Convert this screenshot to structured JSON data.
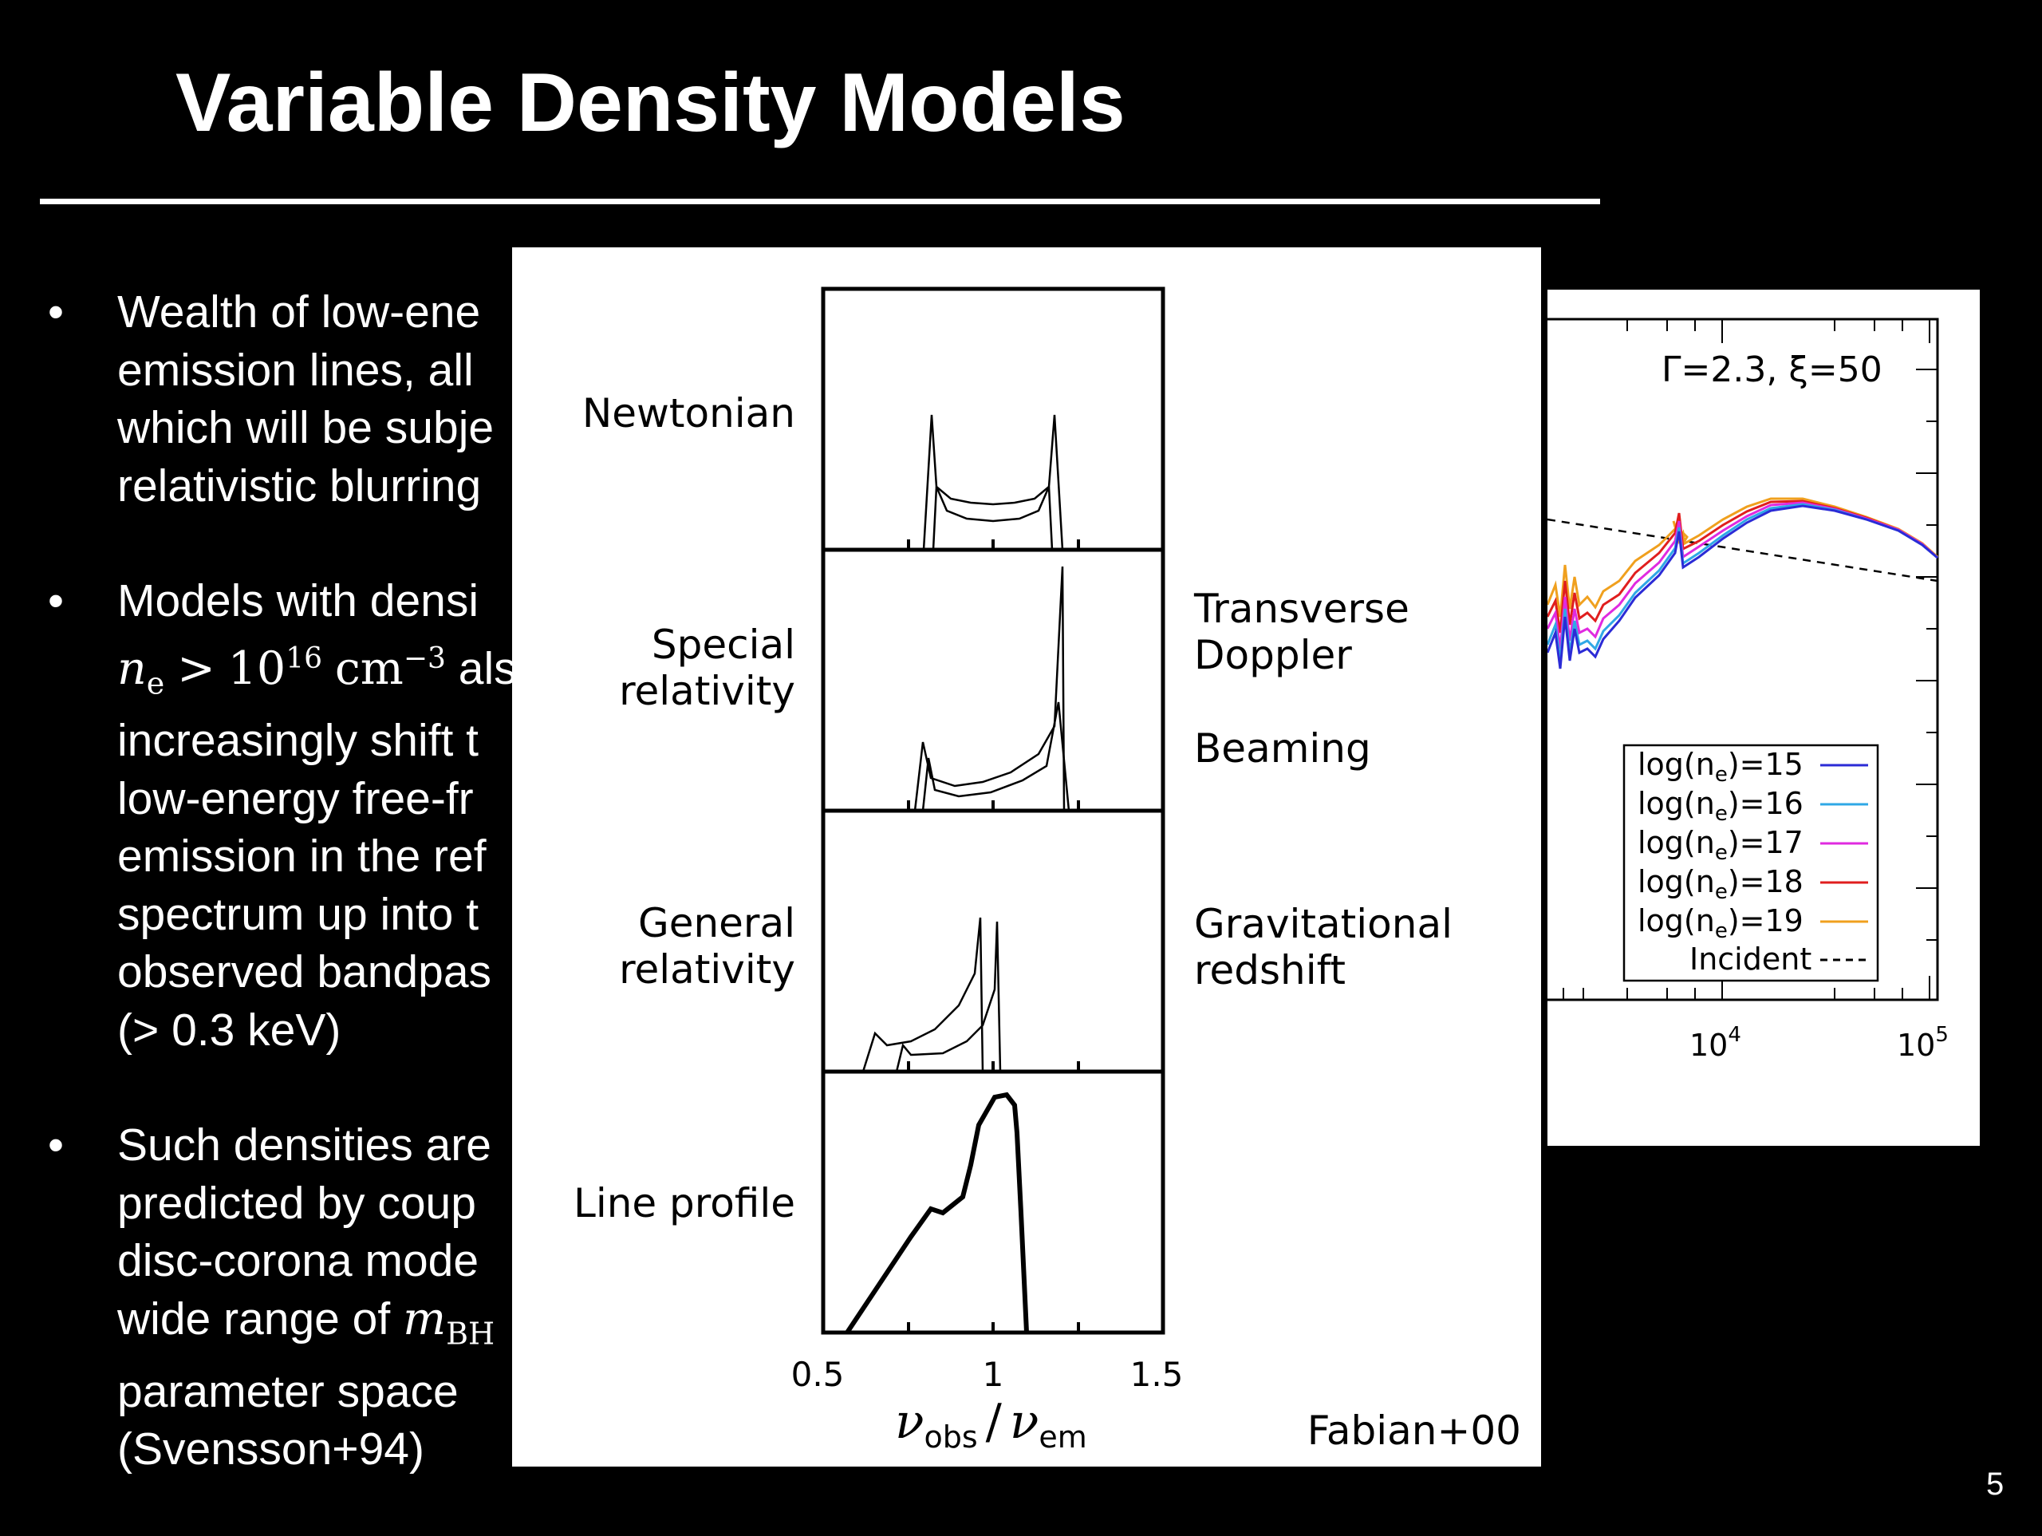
{
  "slide": {
    "title": "Variable Density Models",
    "page_number": "5"
  },
  "bullets": [
    {
      "lines": [
        "Wealth of low-ene",
        "emission lines, all",
        "which will be subje",
        "relativistic blurring"
      ]
    },
    {
      "lines": [
        "__MATH__",
        "increasingly shift t",
        "low-energy free-fr",
        "emission in the ref",
        "spectrum up into t",
        "observed bandpas",
        "(> 0.3 keV)"
      ],
      "math_line": {
        "n": "n",
        "sub": "e",
        "gt": ">",
        "base": "10",
        "exp": "16",
        "unit": "cm",
        "unit_exp": "−3",
        "after": "als"
      },
      "first_line": "Models with densi"
    },
    {
      "lines": [
        "Such densities are",
        "predicted by coup",
        "disc-corona mode",
        "__MATH2__",
        "parameter space",
        "(Svensson+94)"
      ],
      "math_line2": {
        "before": "wide range of ",
        "m": "m",
        "sub": "BH"
      }
    }
  ],
  "left_figure": {
    "panel_labels": [
      "Newtonian",
      "Special",
      "relativity",
      "General",
      "relativity",
      "Line profile"
    ],
    "effect_labels": [
      "Transverse",
      "Doppler",
      "Beaming",
      "Gravitational",
      "redshift"
    ],
    "x_ticks": [
      "0.5",
      "1",
      "1.5"
    ],
    "xlabel_num": "ν",
    "xlabel_num_sub": "obs",
    "xlabel_den": "ν",
    "xlabel_den_sub": "em",
    "xlabel_slash": "/",
    "credit": "Fabian+00"
  },
  "right_figure": {
    "annotation": "Γ=2.3, ξ=50",
    "x_ticks": [
      {
        "base": "10",
        "exp": "4"
      },
      {
        "base": "10",
        "exp": "5"
      }
    ],
    "legend": [
      {
        "label": "log(n",
        "sub": "e",
        "suffix": ")=15",
        "color": "#2b2bd6",
        "dash": false
      },
      {
        "label": "log(n",
        "sub": "e",
        "suffix": ")=16",
        "color": "#2fa8e6",
        "dash": false
      },
      {
        "label": "log(n",
        "sub": "e",
        "suffix": ")=17",
        "color": "#e02ae0",
        "dash": false
      },
      {
        "label": "log(n",
        "sub": "e",
        "suffix": ")=18",
        "color": "#e01e1e",
        "dash": false
      },
      {
        "label": "log(n",
        "sub": "e",
        "suffix": ")=19",
        "color": "#f0a01e",
        "dash": false
      },
      {
        "label": "Incident",
        "sub": "",
        "suffix": "",
        "color": "#000000",
        "dash": true
      }
    ]
  }
}
